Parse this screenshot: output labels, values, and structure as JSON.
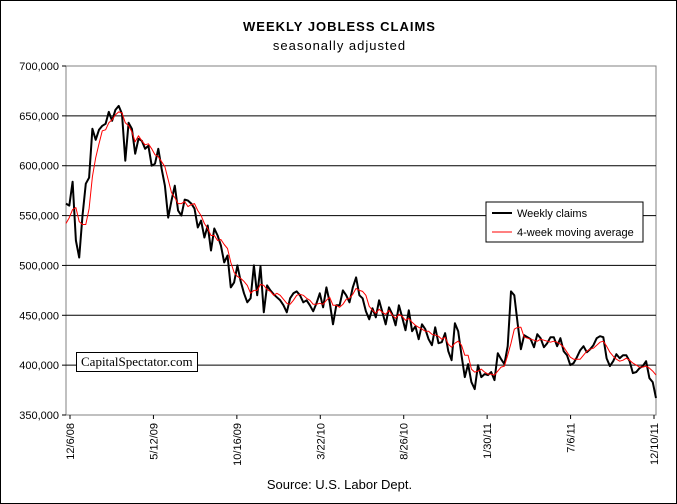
{
  "chart_data": {
    "type": "line",
    "title": "WEEKLY JOBLESS CLAIMS",
    "subtitle": "seasonally adjusted",
    "source": "Source: U.S. Labor Dept.",
    "watermark": "CapitalSpectator.com",
    "ylim": [
      350000,
      700000
    ],
    "y_ticks": [
      350000,
      400000,
      450000,
      500000,
      550000,
      600000,
      650000,
      700000
    ],
    "y_tick_labels": [
      "350,000",
      "400,000",
      "450,000",
      "500,000",
      "550,000",
      "600,000",
      "650,000",
      "700,000"
    ],
    "x_tick_labels": [
      "12/6/08",
      "5/12/09",
      "10/16/09",
      "3/22/10",
      "8/26/10",
      "1/30/11",
      "7/6/11",
      "12/10/11"
    ],
    "grid": "horizontal",
    "legend_position": "right-middle",
    "colors": {
      "weekly": "#000000",
      "moving_average": "#ff0000"
    },
    "series": [
      {
        "name": "Weekly claims",
        "values": [
          562000,
          560000,
          584000,
          525000,
          508000,
          550000,
          582000,
          588000,
          637000,
          626000,
          636000,
          640000,
          642000,
          654000,
          645000,
          656000,
          660000,
          652000,
          605000,
          643000,
          637000,
          612000,
          627000,
          625000,
          617000,
          620000,
          600000,
          602000,
          617000,
          597000,
          580000,
          548000,
          565000,
          580000,
          555000,
          550000,
          566000,
          565000,
          562000,
          557000,
          538000,
          545000,
          528000,
          540000,
          515000,
          537000,
          530000,
          520000,
          503000,
          510000,
          478000,
          483000,
          500000,
          484000,
          472000,
          463000,
          467000,
          500000,
          470000,
          499000,
          453000,
          480000,
          475000,
          471000,
          468000,
          465000,
          460000,
          453000,
          467000,
          472000,
          474000,
          470000,
          463000,
          465000,
          460000,
          454000,
          462000,
          472000,
          458000,
          478000,
          463000,
          441000,
          460000,
          460000,
          475000,
          470000,
          463000,
          478000,
          488000,
          470000,
          467000,
          454000,
          446000,
          457000,
          448000,
          465000,
          453000,
          441000,
          458000,
          451000,
          440000,
          460000,
          448000,
          435000,
          455000,
          434000,
          439000,
          426000,
          441000,
          436000,
          426000,
          420000,
          438000,
          422000,
          423000,
          432000,
          414000,
          405000,
          442000,
          434000,
          410000,
          388000,
          401000,
          383000,
          376000,
          400000,
          388000,
          391000,
          390000,
          393000,
          385000,
          412000,
          406000,
          401000,
          419000,
          474000,
          470000,
          442000,
          416000,
          430000,
          428000,
          426000,
          418000,
          431000,
          427000,
          418000,
          422000,
          428000,
          428000,
          419000,
          427000,
          414000,
          410000,
          400000,
          402000,
          408000,
          415000,
          419000,
          413000,
          416000,
          420000,
          427000,
          429000,
          428000,
          407000,
          399000,
          404000,
          411000,
          407000,
          410000,
          410000,
          404000,
          392000,
          393000,
          397000,
          399000,
          404000,
          387000,
          383000,
          367000
        ]
      },
      {
        "name": "4-week moving average",
        "values": [
          542000,
          548000,
          556000,
          558000,
          544000,
          541000,
          541000,
          557000,
          589000,
          608000,
          622000,
          635000,
          636000,
          643000,
          646000,
          651000,
          654000,
          653000,
          643000,
          640000,
          634000,
          624000,
          630000,
          625000,
          621000,
          622000,
          617000,
          611000,
          609000,
          604000,
          599000,
          586000,
          573000,
          568000,
          562000,
          562000,
          564000,
          559000,
          561000,
          562000,
          555000,
          550000,
          542000,
          537000,
          530000,
          530000,
          525000,
          526000,
          521000,
          517000,
          503000,
          493000,
          489000,
          487000,
          484000,
          480000,
          472000,
          475000,
          475000,
          481000,
          480000,
          476000,
          474000,
          470000,
          472000,
          470000,
          466000,
          462000,
          461000,
          465000,
          470000,
          471000,
          470000,
          467000,
          465000,
          461000,
          461000,
          462000,
          461000,
          465000,
          468000,
          460000,
          460000,
          458000,
          461000,
          466000,
          467000,
          471000,
          477000,
          475000,
          474000,
          470000,
          459000,
          455000,
          452000,
          456000,
          453000,
          451000,
          455000,
          450000,
          447000,
          451000,
          449000,
          445000,
          447000,
          443000,
          440000,
          438000,
          436000,
          434000,
          434000,
          431000,
          430000,
          429000,
          426000,
          428000,
          421000,
          418000,
          422000,
          424000,
          420000,
          410000,
          410000,
          396000,
          393000,
          394000,
          396000,
          393000,
          391000,
          391000,
          390000,
          394000,
          398000,
          399000,
          410000,
          422000,
          436000,
          438000,
          438000,
          428000,
          427000,
          426000,
          425000,
          424000,
          426000,
          425000,
          424000,
          423000,
          424000,
          423000,
          421000,
          418000,
          413000,
          408000,
          406000,
          406000,
          406000,
          410000,
          414000,
          416000,
          417000,
          420000,
          423000,
          424000,
          419000,
          413000,
          409000,
          406000,
          404000,
          405000,
          407000,
          405000,
          402000,
          400000,
          398000,
          398000,
          399000,
          397000,
          394000,
          390000
        ]
      }
    ]
  }
}
